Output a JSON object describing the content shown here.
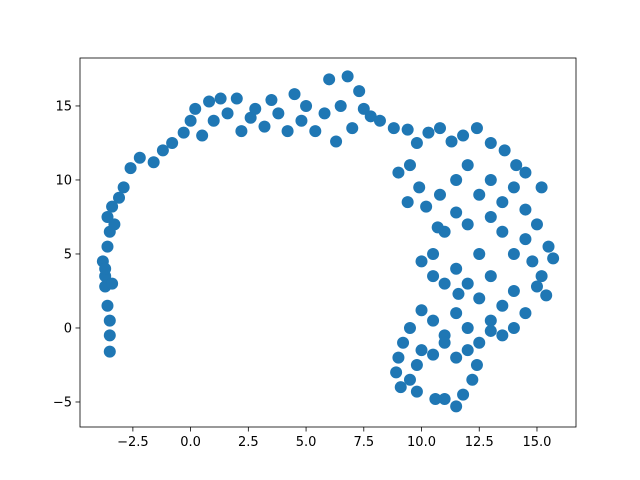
{
  "chart_data": {
    "type": "scatter",
    "color": "#1f77b4",
    "x": [
      -3.5,
      -3.5,
      -3.5,
      -3.6,
      -3.7,
      -3.7,
      -3.8,
      -3.6,
      -3.5,
      -3.6,
      -3.4,
      -3.1,
      -2.9,
      -3.3,
      -3.7,
      -3.4,
      -2.6,
      -2.2,
      -1.6,
      -1.2,
      -0.8,
      -0.3,
      0,
      0.2,
      0.5,
      0.8,
      1,
      1.3,
      1.6,
      2,
      2.2,
      2.6,
      2.8,
      3.2,
      3.5,
      3.8,
      4.2,
      4.5,
      4.8,
      5,
      5.4,
      5.8,
      6,
      6.3,
      6.5,
      6.8,
      7,
      7.3,
      7.5,
      7.8,
      8.2,
      8.8,
      9.4,
      9.8,
      10.3,
      10.8,
      11.3,
      11.8,
      12.4,
      13,
      13.6,
      14.1,
      14.5,
      15.2,
      9,
      9.5,
      9.9,
      9.4,
      10.2,
      10.8,
      11.5,
      12,
      12.5,
      13,
      13.5,
      14,
      14.5,
      15,
      15.5,
      15.7,
      15.2,
      15.4,
      14.5,
      14,
      13.5,
      13,
      12.5,
      12,
      11.5,
      11,
      10.7,
      10.5,
      10,
      10.5,
      11,
      11.5,
      12,
      12.5,
      13,
      13.5,
      14,
      14.5,
      14,
      13.5,
      13,
      12.5,
      12,
      11.5,
      11,
      10.5,
      10,
      9.5,
      9.2,
      9,
      8.9,
      9.1,
      9.5,
      9.8,
      10,
      10.5,
      11,
      11.5,
      12,
      12.4,
      12.2,
      11.8,
      11.5,
      11,
      10.6,
      13,
      14.8,
      15,
      9.8,
      11.6
    ],
    "y": [
      -1.6,
      -0.5,
      0.5,
      1.5,
      2.8,
      3.5,
      4.5,
      5.5,
      6.5,
      7.5,
      8.2,
      8.8,
      9.5,
      7,
      4,
      3,
      10.8,
      11.5,
      11.2,
      12,
      12.5,
      13.2,
      14,
      14.8,
      13,
      15.3,
      14,
      15.5,
      14.5,
      15.5,
      13.3,
      14.2,
      14.8,
      13.6,
      15.4,
      14.5,
      13.3,
      15.8,
      14,
      15,
      13.3,
      14.5,
      16.8,
      12.6,
      15,
      17,
      13.5,
      16,
      14.8,
      14.3,
      14,
      13.5,
      13.4,
      12.5,
      13.2,
      13.5,
      12.6,
      13,
      13.5,
      12.5,
      12,
      11,
      10.5,
      9.5,
      10.5,
      11,
      9.5,
      8.5,
      8.2,
      9,
      10,
      11,
      9,
      10,
      8.5,
      9.5,
      8,
      7,
      5.5,
      4.7,
      3.5,
      2.2,
      6,
      5,
      6.5,
      7.5,
      5,
      7,
      7.8,
      6.5,
      6.8,
      5,
      4.5,
      3.5,
      3,
      4,
      3,
      2,
      3.5,
      1.5,
      2.5,
      1,
      0,
      -0.5,
      0.5,
      -1,
      0,
      1,
      -0.5,
      0.5,
      1.2,
      0,
      -1,
      -2,
      -3,
      -4,
      -3.5,
      -2.5,
      -1.5,
      -1.8,
      -1,
      -2,
      -1.5,
      -2.5,
      -3.5,
      -4.5,
      -5.3,
      -4.8,
      -4.8,
      -0.2,
      4.5,
      2.8,
      -4.3,
      2.3
    ],
    "xlim": [
      -4.79,
      16.69
    ],
    "ylim": [
      -6.69,
      18.24
    ],
    "xticks": [
      {
        "value": -2.5,
        "label": "−2.5"
      },
      {
        "value": 0,
        "label": "0.0"
      },
      2.5,
      {
        "value": 5,
        "label": "5.0"
      },
      7.5,
      {
        "value": 10,
        "label": "10.0"
      },
      12.5,
      {
        "value": 15,
        "label": "15.0"
      }
    ],
    "yticks": [
      {
        "value": -5,
        "label": "−5"
      },
      0,
      5,
      10,
      15
    ]
  }
}
